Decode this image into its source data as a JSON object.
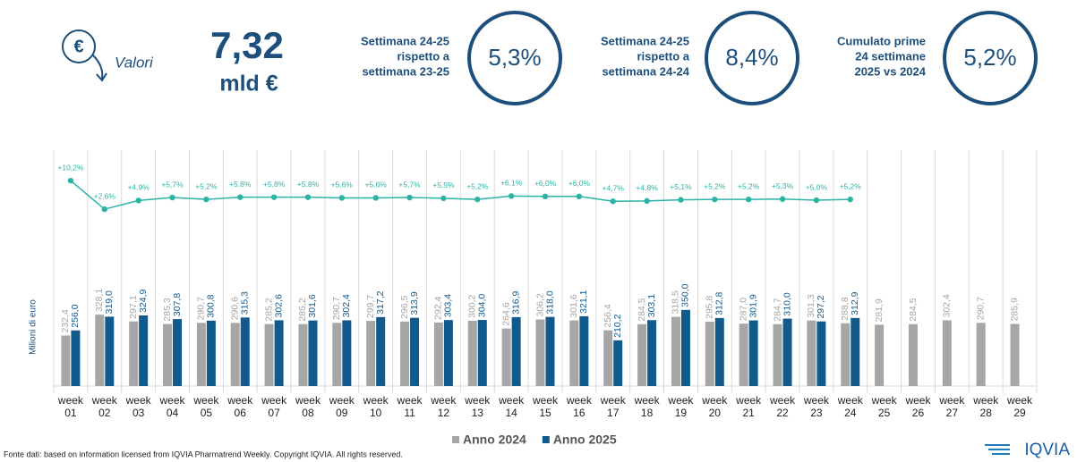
{
  "header": {
    "icon_label": "Valori",
    "total_value": "7,32",
    "total_unit": "mld €",
    "kpis": [
      {
        "lines": [
          "Settimana 24-25",
          "rispetto a",
          "settimana 23-25"
        ],
        "value": "5,3%"
      },
      {
        "lines": [
          "Settimana 24-25",
          "rispetto a",
          "settimana 24-24"
        ],
        "value": "8,4%"
      },
      {
        "lines": [
          "Cumulato prime",
          "24 settimane",
          "2025 vs 2024"
        ],
        "value": "5,2%"
      }
    ]
  },
  "chart_data": {
    "type": "bar",
    "y_label": "Milioni di euro",
    "categories": [
      "week 01",
      "week 02",
      "week 03",
      "week 04",
      "week 05",
      "week 06",
      "week 07",
      "week 08",
      "week 09",
      "week 10",
      "week 11",
      "week 12",
      "week 13",
      "week 14",
      "week 15",
      "week 16",
      "week 17",
      "week 18",
      "week 19",
      "week 20",
      "week 21",
      "week 22",
      "week 23",
      "week 24",
      "week 25",
      "week 26",
      "week 27",
      "week 28",
      "week 29"
    ],
    "ylim": [
      0,
      1200
    ],
    "y2lim": [
      0,
      25
    ],
    "series": [
      {
        "name": "Anno 2024",
        "color": "#a6a6a6",
        "values": [
          232.4,
          328.1,
          297.1,
          285.3,
          290.7,
          290.6,
          285.2,
          285.2,
          290.7,
          299.7,
          296.5,
          292.4,
          300.2,
          264.6,
          306.2,
          301.6,
          256.4,
          284.5,
          318.5,
          295.8,
          287.0,
          284.7,
          301.3,
          288.8,
          281.9,
          284.5,
          302.4,
          290.7,
          285.9
        ],
        "value_labels": [
          "232,4",
          "328,1",
          "297,1",
          "285,3",
          "290,7",
          "290,6",
          "285,2",
          "285,2",
          "290,7",
          "299,7",
          "296,5",
          "292,4",
          "300,2",
          "264,6",
          "306,2",
          "301,6",
          "256,4",
          "284,5",
          "318,5",
          "295,8",
          "287,0",
          "284,7",
          "301,3",
          "288,8",
          "281,9",
          "284,5",
          "302,4",
          "290,7",
          "285,9"
        ]
      },
      {
        "name": "Anno 2025",
        "color": "#135a8c",
        "values": [
          256.0,
          319.0,
          324.9,
          307.8,
          300.8,
          315.3,
          302.6,
          301.6,
          302.4,
          317.2,
          313.9,
          303.4,
          304.0,
          316.9,
          318.0,
          321.1,
          210.2,
          303.1,
          350.0,
          312.8,
          301.9,
          310.0,
          297.2,
          312.9,
          null,
          null,
          null,
          null,
          null
        ],
        "value_labels": [
          "256,0",
          "319,0",
          "324,9",
          "307,8",
          "300,8",
          "315,3",
          "302,6",
          "301,6",
          "302,4",
          "317,2",
          "313,9",
          "303,4",
          "304,0",
          "316,9",
          "318,0",
          "321,1",
          "210,2",
          "303,1",
          "350,0",
          "312,8",
          "301,9",
          "310,0",
          "297,2",
          "312,9",
          null,
          null,
          null,
          null,
          null
        ]
      },
      {
        "type": "line",
        "axis": "y2",
        "color": "#2bb3a5",
        "values": [
          10.2,
          2.6,
          4.9,
          5.7,
          5.2,
          5.8,
          5.8,
          5.8,
          5.6,
          5.6,
          5.7,
          5.5,
          5.2,
          6.1,
          6.0,
          6.0,
          4.7,
          4.8,
          5.1,
          5.2,
          5.2,
          5.3,
          5.0,
          5.2,
          null,
          null,
          null,
          null,
          null
        ],
        "value_labels": [
          "+10,2%",
          "+2,6%",
          "+4,9%",
          "+5,7%",
          "+5,2%",
          "+5,8%",
          "+5,8%",
          "+5,8%",
          "+5,6%",
          "+5,6%",
          "+5,7%",
          "+5,5%",
          "+5,2%",
          "+6,1%",
          "+6,0%",
          "+6,0%",
          "+4,7%",
          "+4,8%",
          "+5,1%",
          "+5,2%",
          "+5,2%",
          "+5,3%",
          "+5,0%",
          "+5,2%",
          null,
          null,
          null,
          null,
          null
        ]
      }
    ]
  },
  "footer": {
    "source": "Fonte dati: based on information licensed from IQVIA Pharmatrend Weekly. Copyright IQVIA. All rights reserved.",
    "logo": "IQVIA"
  }
}
